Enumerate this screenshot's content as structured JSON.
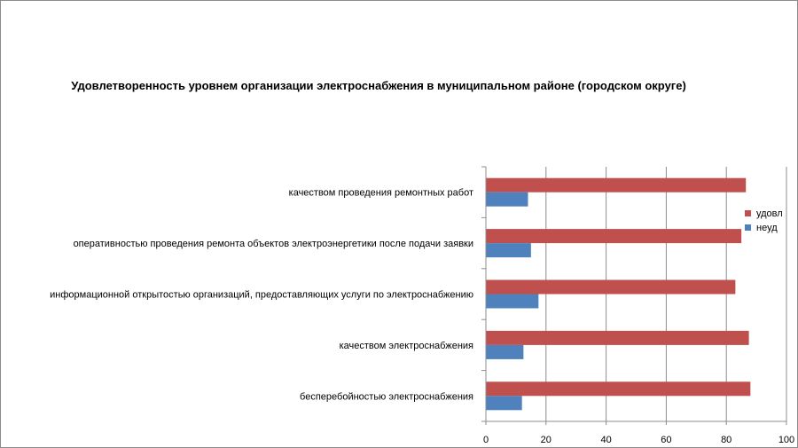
{
  "chart_data": {
    "type": "bar",
    "orientation": "horizontal",
    "title": "Удовлетворенность уровнем организации электроснабжения в муниципальном районе (городском округе)",
    "categories": [
      "бесперебойностью электроснабжения",
      "качеством электроснабжения",
      "информационной открытостью организаций, предоставляющих услуги по электроснабжению",
      "оперативностью проведения ремонта объектов электроэнергетики после подачи заявки",
      "качеством проведения ремонтных работ"
    ],
    "series": [
      {
        "name": "удовл",
        "color": "#c0504d",
        "values": [
          88,
          87.5,
          83,
          85,
          86.5
        ]
      },
      {
        "name": "неуд",
        "color": "#4f81bd",
        "values": [
          12,
          12.5,
          17.5,
          15,
          14
        ]
      }
    ],
    "xlim": [
      0,
      100
    ],
    "xticks": [
      "0",
      "20",
      "40",
      "60",
      "80",
      "100"
    ],
    "grid": true,
    "legend_position": "right"
  }
}
